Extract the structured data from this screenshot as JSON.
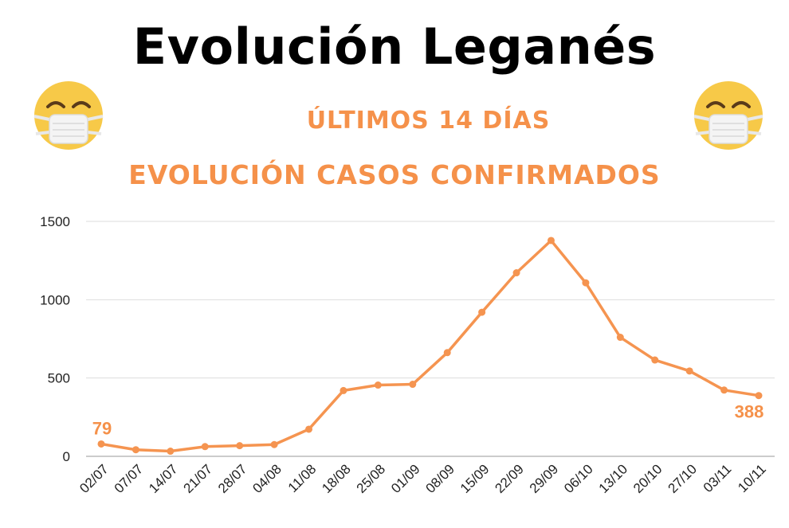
{
  "header": {
    "title": "Evolución Leganés",
    "subtitle_period": "ÚLTIMOS 14 DÍAS",
    "subtitle_metric": "EVOLUCIÓN CASOS CONFIRMADOS"
  },
  "icons": {
    "left": "face-with-medical-mask-icon",
    "right": "face-with-medical-mask-icon"
  },
  "colors": {
    "accent": "#f5914a",
    "line": "#f59450",
    "grid": "#dddddd",
    "title": "#000000",
    "emoji": "#f7c948"
  },
  "chart_data": {
    "type": "line",
    "title": "",
    "xlabel": "",
    "ylabel": "",
    "ylim": [
      0,
      1500
    ],
    "yticks": [
      0,
      500,
      1000,
      1500
    ],
    "grid": true,
    "categories": [
      "02/07",
      "07/07",
      "14/07",
      "21/07",
      "28/07",
      "04/08",
      "11/08",
      "18/08",
      "25/08",
      "01/09",
      "08/09",
      "15/09",
      "22/09",
      "29/09",
      "06/10",
      "13/10",
      "20/10",
      "27/10",
      "03/11",
      "10/11"
    ],
    "series": [
      {
        "values": [
          79,
          42,
          33,
          62,
          68,
          75,
          173,
          420,
          455,
          460,
          662,
          920,
          1172,
          1378,
          1108,
          760,
          615,
          545,
          423,
          388
        ]
      }
    ],
    "annotations": [
      {
        "index": 0,
        "text": "79"
      },
      {
        "index": 19,
        "text": "388"
      }
    ]
  }
}
